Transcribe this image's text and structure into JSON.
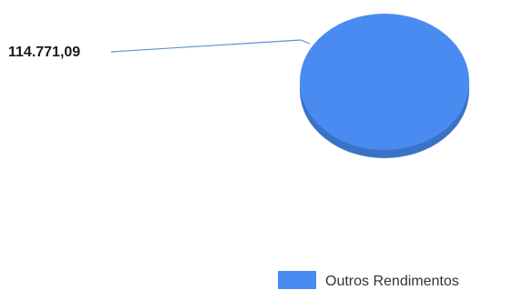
{
  "chart_data": {
    "type": "pie",
    "style": "3d",
    "title": "",
    "categories": [
      "Outros Rendimentos"
    ],
    "values": [
      114771.09
    ],
    "data_labels": [
      "114.771,09"
    ],
    "legend": {
      "position": "bottom-right",
      "entries": [
        "Outros Rendimentos"
      ]
    },
    "colors": {
      "slice_top": "#4a8bf2",
      "slice_side": "#3a72c8",
      "leader_line": "#5d8fd8",
      "label_text": "#1a1a1a",
      "legend_text": "#333333"
    }
  }
}
